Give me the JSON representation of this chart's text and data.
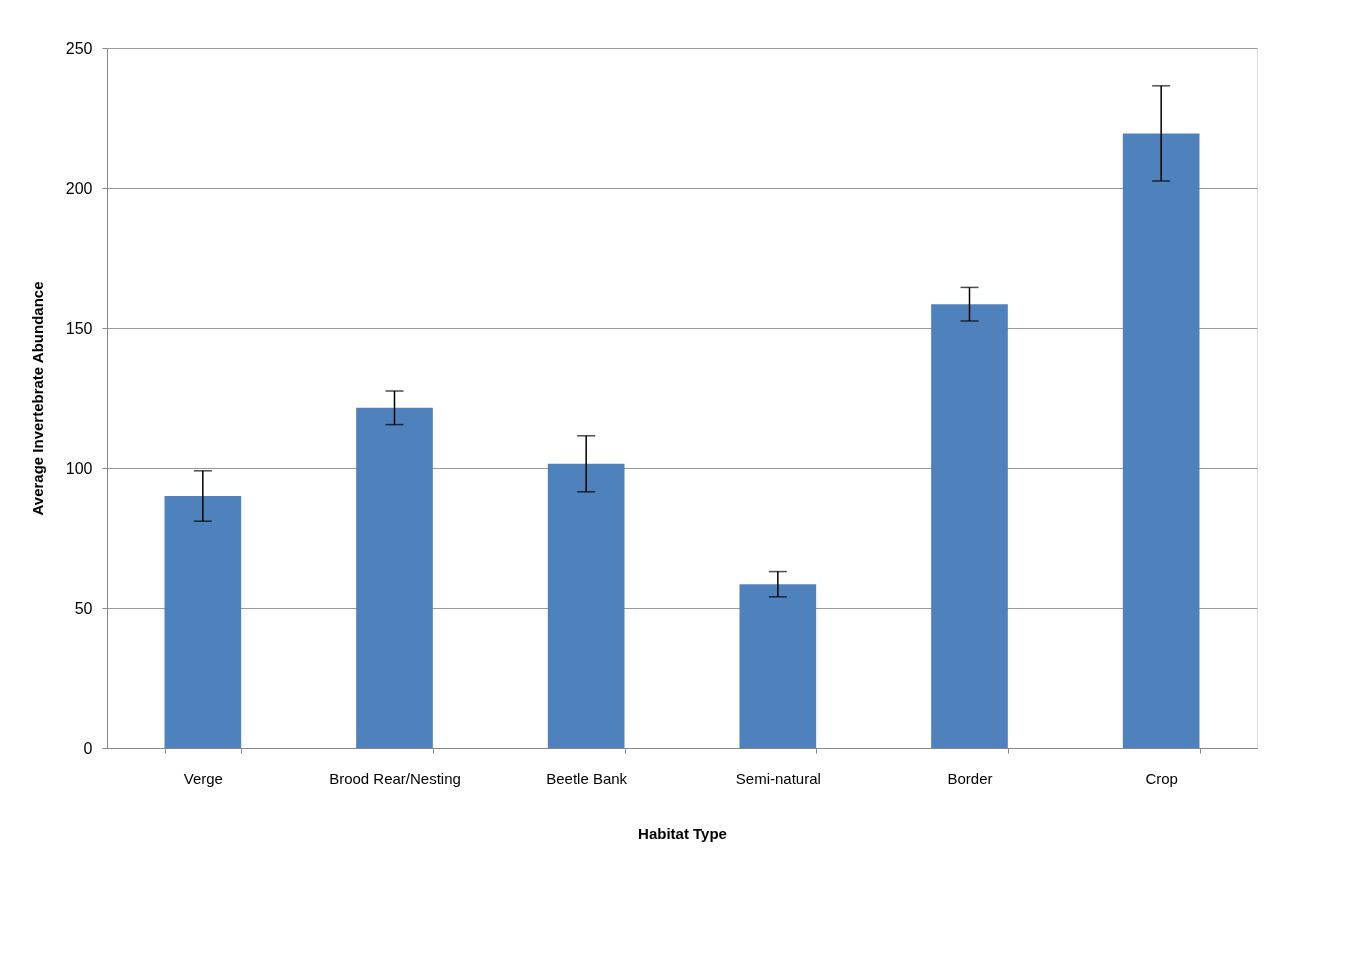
{
  "chart_data": {
    "type": "bar",
    "xlabel": "Habitat Type",
    "ylabel": "Average Invertebrate Abundance",
    "categories": [
      "Verge",
      "Brood Rear/Nesting",
      "Beetle Bank",
      "Semi-natural",
      "Border",
      "Crop"
    ],
    "values": [
      90,
      121.5,
      101.5,
      58.5,
      158.5,
      219.5
    ],
    "errors": [
      9,
      6,
      10,
      4.5,
      6,
      17
    ],
    "color": "#4f81bd",
    "ylim": [
      0,
      250
    ],
    "yticks": [
      0,
      50,
      100,
      150,
      200,
      250
    ],
    "grid": "y"
  }
}
